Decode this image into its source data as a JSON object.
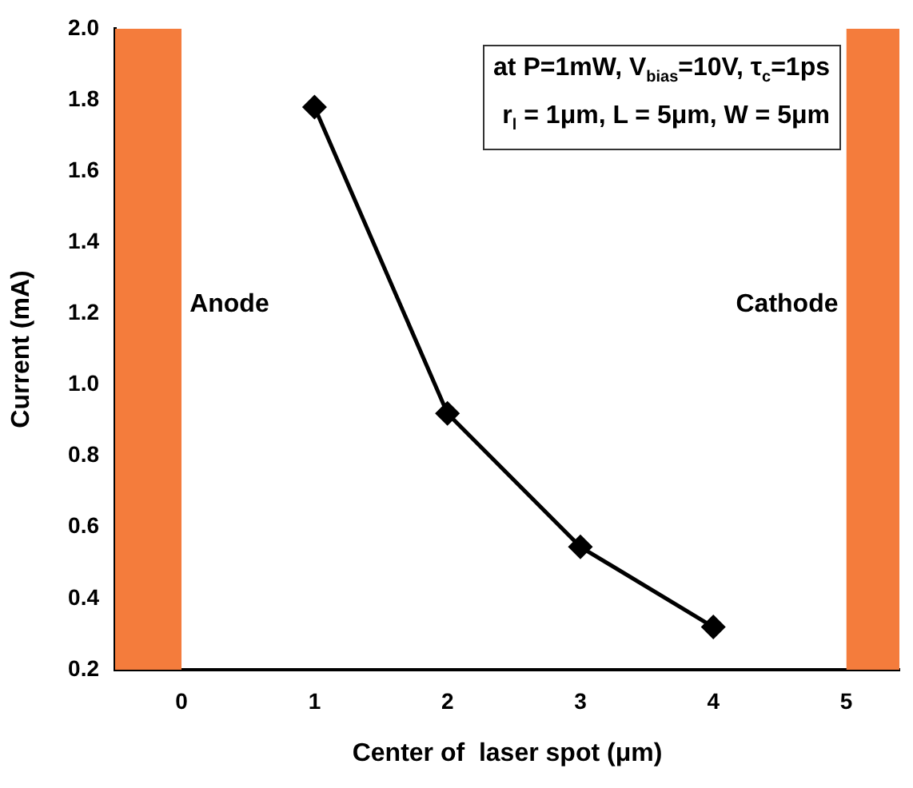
{
  "chart_data": {
    "type": "line",
    "xlabel": "Center of  laser spot (μm)",
    "ylabel": "Current (mA)",
    "x": [
      1,
      2,
      3,
      4
    ],
    "series": [
      {
        "color": "#000000",
        "values": [
          1.78,
          0.92,
          0.545,
          0.32
        ]
      }
    ],
    "marker": "diamond",
    "line_style": "solid",
    "grid": false,
    "legend": false,
    "xlim": [
      -0.5,
      5.4
    ],
    "xticks": [
      0,
      1,
      2,
      3,
      4,
      5
    ],
    "ylim": [
      0.2,
      2.0
    ],
    "yticks": [
      0.2,
      0.4,
      0.6,
      0.8,
      {
        "value": 1,
        "label": "1.0"
      },
      1.2,
      1.4,
      1.6,
      1.8,
      {
        "value": 2,
        "label": "2.0"
      }
    ],
    "bands": [
      {
        "axis": "x",
        "from": -0.5,
        "to": 0,
        "label": "Anode",
        "color": "#f47c3c"
      },
      {
        "axis": "x",
        "from": 5,
        "to": 5.4,
        "label": "Cathode",
        "color": "#f47c3c"
      }
    ],
    "annotations": [
      "at P=1mW, V$_{bias}$=10V, τ$_{c}$=1ps",
      "r$_{l}$ = 1μm, L = 5μm, W = 5μm"
    ]
  }
}
